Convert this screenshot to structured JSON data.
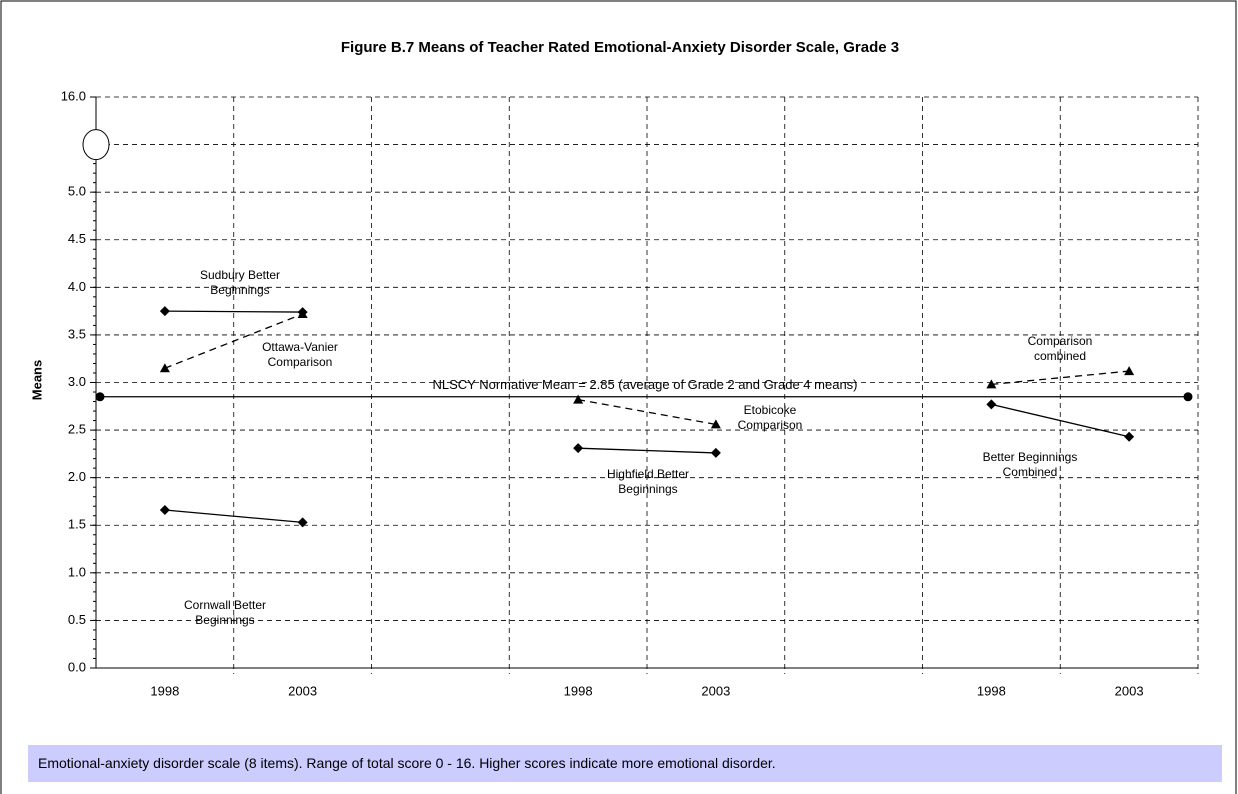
{
  "chart_data": {
    "type": "line",
    "title": "Figure B.7  Means of Teacher Rated Emotional-Anxiety Disorder Scale, Grade 3",
    "y_label": "Means",
    "note": "Emotional-anxiety disorder scale (8 items). Range of total score 0 - 16. Higher scores indicate more emotional disorder.",
    "categories": [
      "1998",
      "2003",
      null,
      "1998",
      "2003",
      null,
      "1998",
      "2003"
    ],
    "ylim": [
      0,
      16
    ],
    "y_break": true,
    "yticks": [
      {
        "value": 0,
        "label": "0.0"
      },
      {
        "value": 0.5,
        "label": "0.5"
      },
      {
        "value": 1,
        "label": "1.0"
      },
      {
        "value": 1.5,
        "label": "1.5"
      },
      {
        "value": 2,
        "label": "2.0"
      },
      {
        "value": 2.5,
        "label": "2.5"
      },
      {
        "value": 3,
        "label": "3.0"
      },
      {
        "value": 3.5,
        "label": "3.5"
      },
      {
        "value": 4,
        "label": "4.0"
      },
      {
        "value": 4.5,
        "label": "4.5"
      },
      {
        "value": 5,
        "label": "5.0"
      },
      {
        "value": 16,
        "label": "16.0"
      }
    ],
    "grid": true,
    "reference_line": {
      "value": 2.85,
      "label": "NLSCY Normative Mean = 2.85 (average of Grade 2 and Grade 4 means)"
    },
    "series": [
      {
        "name": "Sudbury Better Beginnings",
        "color": "#000000",
        "marker": "diamond",
        "dashed": false,
        "values": [
          3.75,
          3.74,
          null,
          null,
          null,
          null,
          null,
          null
        ]
      },
      {
        "name": "Ottawa-Vanier Comparison",
        "color": "#000000",
        "marker": "triangle",
        "dashed": true,
        "values": [
          3.15,
          3.72,
          null,
          null,
          null,
          null,
          null,
          null
        ]
      },
      {
        "name": "Cornwall Better Beginnings",
        "color": "#000000",
        "marker": "diamond",
        "dashed": false,
        "values": [
          1.66,
          1.53,
          null,
          null,
          null,
          null,
          null,
          null
        ]
      },
      {
        "name": "Highfield Better Beginnings",
        "color": "#000000",
        "marker": "diamond",
        "dashed": false,
        "values": [
          null,
          null,
          null,
          2.31,
          2.26,
          null,
          null,
          null
        ]
      },
      {
        "name": "Etobicoke Comparison",
        "color": "#000000",
        "marker": "triangle",
        "dashed": true,
        "values": [
          null,
          null,
          null,
          2.82,
          2.56,
          null,
          null,
          null
        ]
      },
      {
        "name": "Better Beginnings Combined",
        "color": "#000000",
        "marker": "diamond",
        "dashed": false,
        "values": [
          null,
          null,
          null,
          null,
          null,
          null,
          2.77,
          2.43
        ]
      },
      {
        "name": "Comparison combined",
        "color": "#000000",
        "marker": "triangle",
        "dashed": true,
        "values": [
          null,
          null,
          null,
          null,
          null,
          null,
          2.98,
          3.12
        ]
      }
    ]
  }
}
